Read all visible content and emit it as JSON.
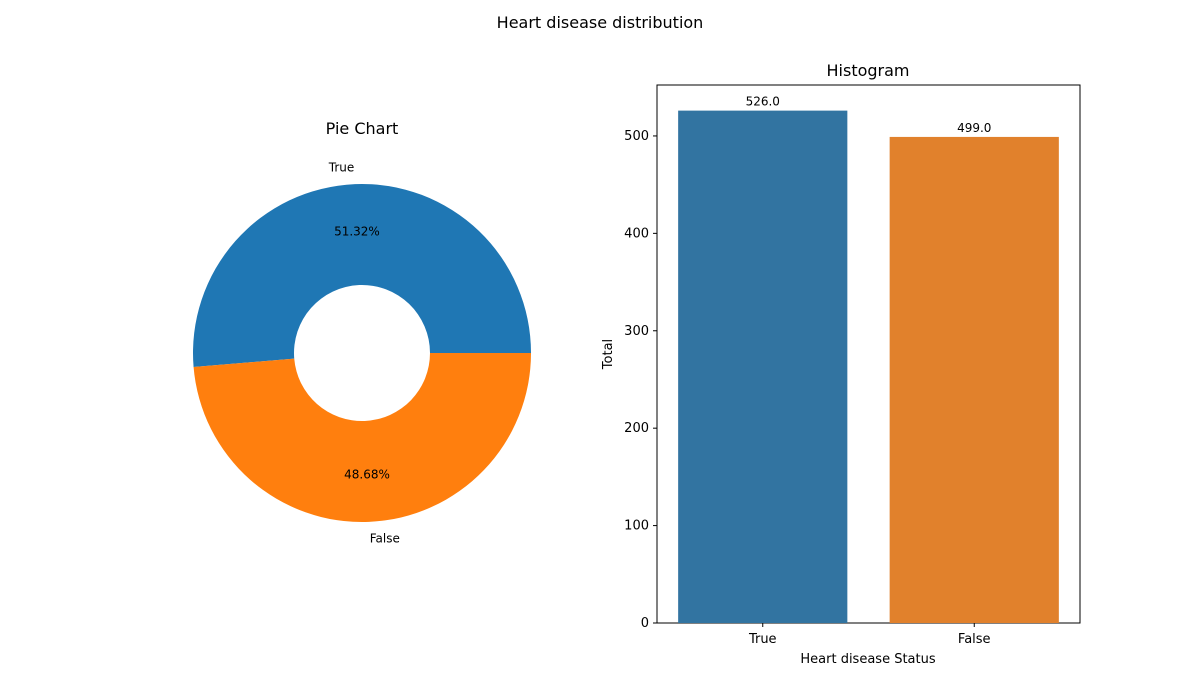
{
  "figure": {
    "suptitle": "Heart disease distribution"
  },
  "chart_data": [
    {
      "type": "pie",
      "title": "Pie Chart",
      "labels": [
        "True",
        "False"
      ],
      "values": [
        51.32,
        48.68
      ],
      "value_labels": [
        "51.32%",
        "48.68%"
      ],
      "colors": [
        "#1f77b4",
        "#ff7f0e"
      ],
      "donut": true
    },
    {
      "type": "bar",
      "title": "Histogram",
      "categories": [
        "True",
        "False"
      ],
      "values": [
        526.0,
        499.0
      ],
      "value_labels": [
        "526.0",
        "499.0"
      ],
      "colors": [
        "#3274a1",
        "#e1812c"
      ],
      "xlabel": "Heart disease Status",
      "ylabel": "Total",
      "ylim": [
        0,
        552.3
      ],
      "yticks": [
        "0",
        "100",
        "200",
        "300",
        "400",
        "500"
      ],
      "grid": false
    }
  ]
}
